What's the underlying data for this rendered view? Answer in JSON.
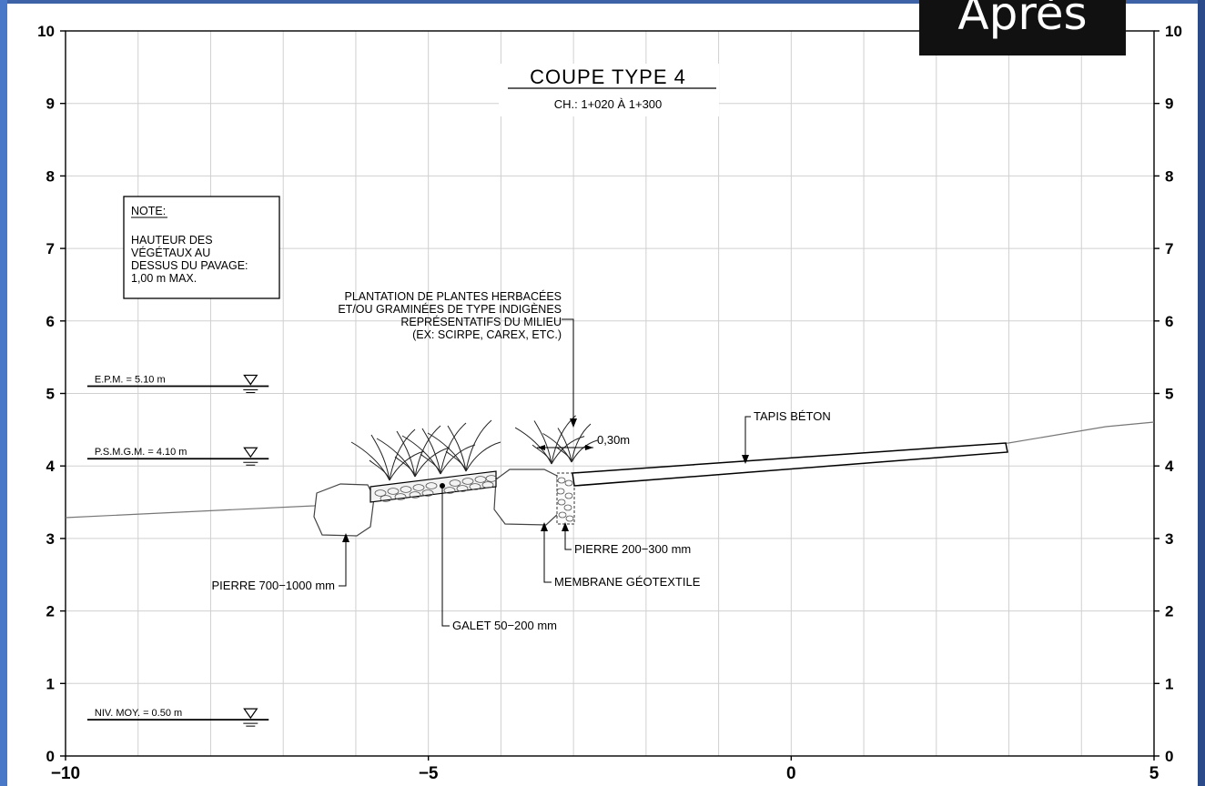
{
  "badge": "Après",
  "frame_colors": {
    "left": "#4a78c8",
    "top": "#3d63a6",
    "right": "#2b4a8a",
    "grid": "#d0d0d0",
    "ink": "#000000",
    "ground": "#777777"
  },
  "axes": {
    "x_ticks": [
      "−10",
      "−5",
      "0",
      "5"
    ],
    "y_ticks": [
      "0",
      "1",
      "2",
      "3",
      "4",
      "5",
      "6",
      "7",
      "8",
      "9",
      "10"
    ]
  },
  "title": {
    "main": "COUPE  TYPE  4",
    "sub": "CH.: 1+020 À 1+300"
  },
  "note": {
    "heading": "NOTE:",
    "lines": [
      "HAUTEUR DES",
      "VÉGÉTAUX AU",
      "DESSUS DU PAVAGE:",
      "1,00 m MAX."
    ]
  },
  "levels": [
    {
      "label": "E.P.M. = 5.10 m",
      "y": 5.1
    },
    {
      "label": "P.S.M.G.M. = 4.10 m",
      "y": 4.1
    },
    {
      "label": "NIV. MOY. = 0.50 m",
      "y": 0.5
    }
  ],
  "plantation_label": [
    "PLANTATION DE PLANTES HERBACÉES",
    "ET/OU GRAMINÉES DE TYPE INDIGÈNES",
    "REPRÉSENTATIFS DU MILIEU",
    "(EX: SCIRPE, CAREX, ETC.)"
  ],
  "dimension": "0,30m",
  "callouts": {
    "tapis": "TAPIS BÉTON",
    "pierre_small": "PIERRE 200−300 mm",
    "membrane": "MEMBRANE GÉOTEXTILE",
    "pierre_large": "PIERRE 700−1000 mm",
    "galet": "GALET 50−200 mm"
  }
}
